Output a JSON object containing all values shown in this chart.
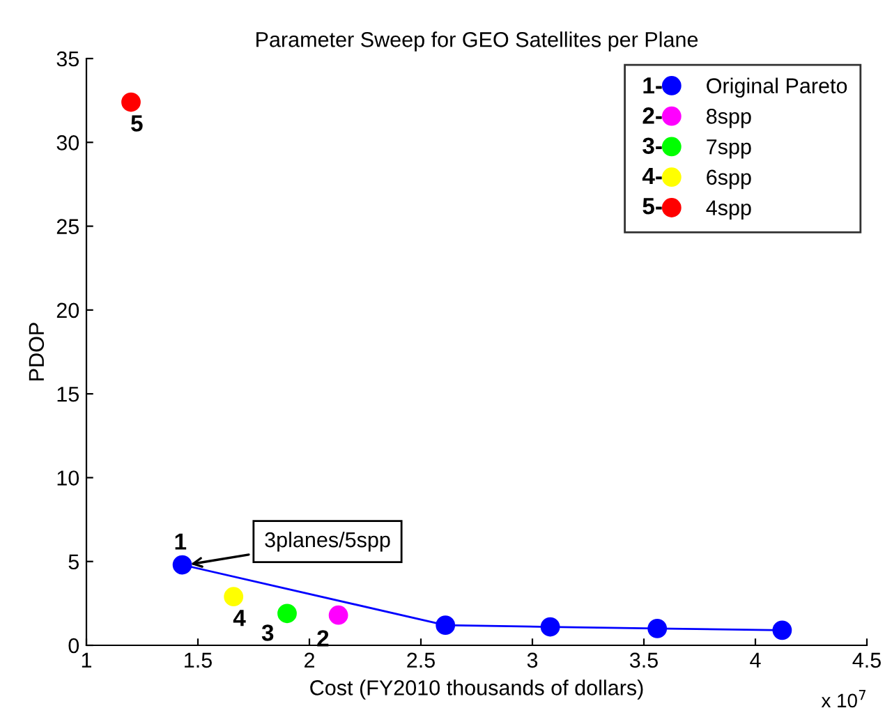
{
  "chart_data": {
    "type": "scatter",
    "title": "Parameter Sweep for GEO Satellites per Plane",
    "xlabel": "Cost (FY2010 thousands of dollars)",
    "ylabel": "PDOP",
    "series": [
      {
        "name": "Original Pareto",
        "type": "line",
        "color": "#0000ff",
        "x": [
          1.43,
          2.61,
          3.08,
          3.56,
          4.12
        ],
        "values": [
          4.8,
          1.2,
          1.1,
          1.0,
          0.9
        ]
      },
      {
        "name": "8spp",
        "color": "#ff00ff",
        "x": [
          2.13
        ],
        "values": [
          1.8
        ]
      },
      {
        "name": "7spp",
        "color": "#00ff00",
        "x": [
          1.9
        ],
        "values": [
          1.9
        ]
      },
      {
        "name": "6spp",
        "color": "#ffff00",
        "x": [
          1.66
        ],
        "values": [
          2.9
        ]
      },
      {
        "name": "4spp",
        "color": "#ff0000",
        "x": [
          1.2
        ],
        "values": [
          32.4
        ]
      }
    ],
    "xlim": [
      1,
      4.5
    ],
    "xticks": [
      1,
      1.5,
      2,
      2.5,
      3,
      3.5,
      4,
      4.5
    ],
    "ylim": [
      0,
      35
    ],
    "yticks": [
      0,
      5,
      10,
      15,
      20,
      25,
      30,
      35
    ],
    "marker": "circle",
    "grid": false,
    "legend": "top right",
    "annotations": [
      "1-",
      "2-",
      "3-",
      "4-",
      "5-",
      "x 10$^{7}$",
      {
        "text": "3planes/5spp",
        "x": 1.45,
        "y": 4.8
      },
      {
        "text": "1",
        "x": 1.43,
        "y": 4.8
      },
      {
        "text": "2",
        "x": 2.13,
        "y": 1.8
      },
      {
        "text": "3",
        "x": 1.9,
        "y": 1.9
      },
      {
        "text": "4",
        "x": 1.66,
        "y": 2.9
      },
      {
        "text": "5",
        "x": 1.2,
        "y": 32.4
      }
    ]
  }
}
